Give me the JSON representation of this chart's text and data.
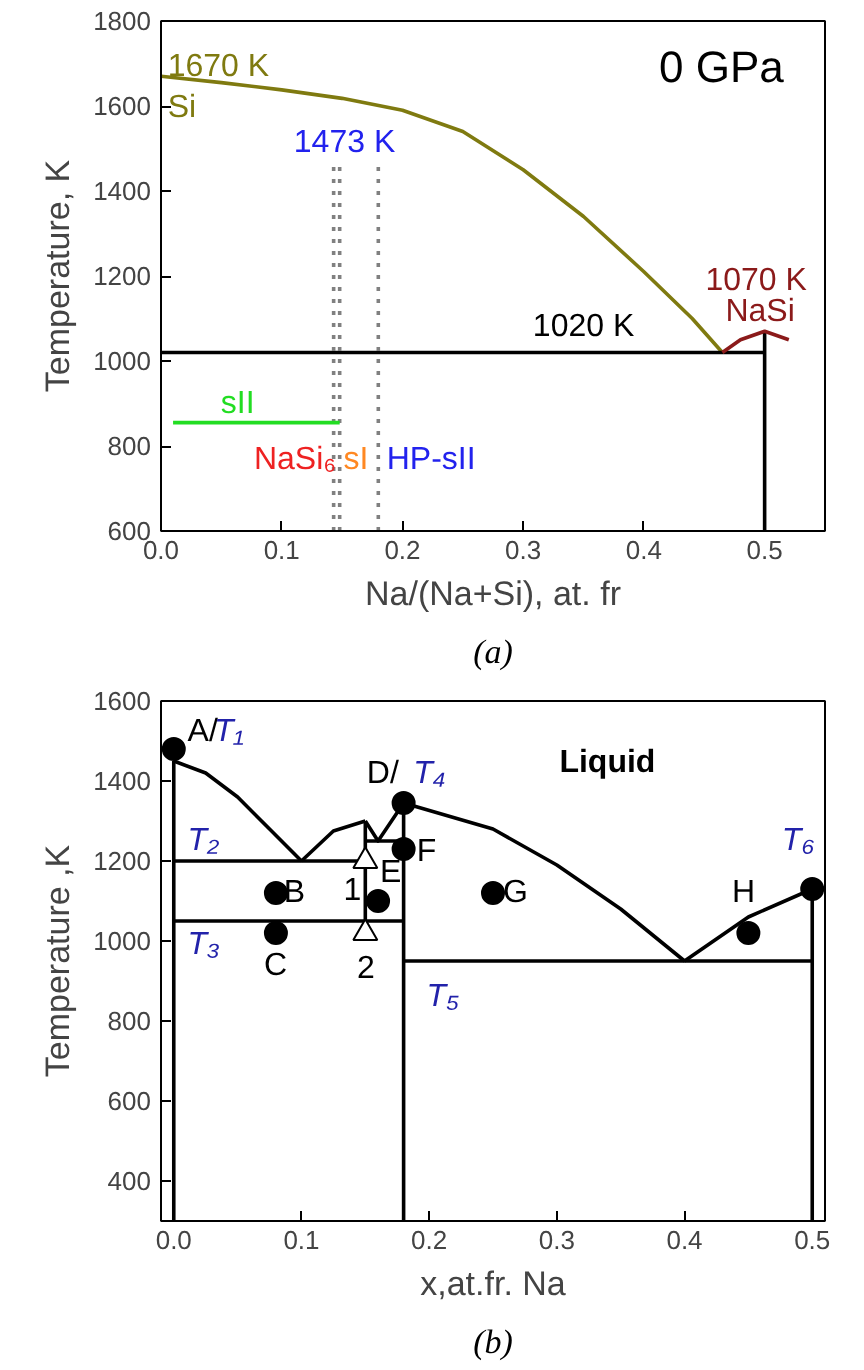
{
  "chart_data": [
    {
      "type": "line",
      "xlabel": "Na/(Na+Si), at. fr",
      "ylabel": "Temperature, K",
      "xlim": [
        0,
        0.55
      ],
      "ylim": [
        600,
        1800
      ],
      "xticks": [
        {
          "value": 0,
          "label": "0.0"
        },
        0.1,
        0.2,
        0.3,
        0.4,
        0.5
      ],
      "yticks": [
        600,
        800,
        1000,
        1200,
        1400,
        1600,
        1800
      ],
      "marker": "none",
      "series": [
        {
          "color": "#7f7a10",
          "x": [
            0,
            0.05,
            0.1,
            0.15,
            0.2,
            0.25,
            0.3,
            0.35,
            0.4,
            0.44,
            0.465
          ],
          "values": [
            1670,
            1655,
            1638,
            1618,
            1590,
            1540,
            1450,
            1340,
            1210,
            1100,
            1020
          ]
        },
        {
          "color": "#000000",
          "x": [
            0,
            0.5
          ],
          "values": [
            1020,
            1020
          ]
        },
        {
          "color": "#000000",
          "x": [
            0.5,
            0.5
          ],
          "values": [
            600,
            1070
          ]
        },
        {
          "color": "#8b1a1a",
          "x": [
            0.465,
            0.48,
            0.5,
            0.52
          ],
          "values": [
            1020,
            1050,
            1070,
            1050
          ]
        },
        {
          "color": "#808080",
          "line_style": "dotted",
          "x": [
            0.143,
            0.143
          ],
          "values": [
            600,
            1460
          ]
        },
        {
          "color": "#808080",
          "line_style": "dotted",
          "x": [
            0.148,
            0.148
          ],
          "values": [
            600,
            1460
          ]
        },
        {
          "color": "#808080",
          "line_style": "dotted",
          "x": [
            0.18,
            0.18
          ],
          "values": [
            600,
            1460
          ]
        },
        {
          "color": "#22dd22",
          "x": [
            0.01,
            0.148
          ],
          "values": [
            855,
            855
          ]
        }
      ],
      "annotations": [
        "0 GPa",
        "1670 K",
        "Si",
        "1473 K",
        "1020 K",
        "1070 K",
        "NaSi",
        "sII",
        "NaSi₆",
        "sI",
        "HP-sII",
        "(a)"
      ]
    },
    {
      "type": "line",
      "xlabel": "x,at.fr. Na",
      "ylabel": "Temperature ,K",
      "xlim": [
        -0.01,
        0.51
      ],
      "ylim": [
        300,
        1600
      ],
      "xticks": [
        {
          "value": 0,
          "label": "0.0"
        },
        0.1,
        0.2,
        0.3,
        0.4,
        0.5
      ],
      "yticks": [
        400,
        600,
        800,
        1000,
        1200,
        1400,
        1600
      ],
      "marker": "none",
      "series": [
        {
          "color": "#000000",
          "x": [
            0,
            0
          ],
          "values": [
            300,
            1450
          ]
        },
        {
          "color": "#000000",
          "x": [
            0,
            0.025,
            0.05,
            0.075,
            0.1
          ],
          "values": [
            1450,
            1420,
            1360,
            1280,
            1200
          ]
        },
        {
          "color": "#000000",
          "x": [
            0.1,
            0.125,
            0.15
          ],
          "values": [
            1200,
            1275,
            1300
          ]
        },
        {
          "color": "#000000",
          "x": [
            0.15,
            0.16,
            0.18
          ],
          "values": [
            1300,
            1250,
            1345
          ]
        },
        {
          "color": "#000000",
          "x": [
            0.18,
            0.25,
            0.3,
            0.35,
            0.4
          ],
          "values": [
            1345,
            1280,
            1190,
            1080,
            950
          ]
        },
        {
          "color": "#000000",
          "x": [
            0.4,
            0.45,
            0.5
          ],
          "values": [
            950,
            1060,
            1130
          ]
        },
        {
          "color": "#000000",
          "x": [
            0,
            0.15
          ],
          "values": [
            1200,
            1200
          ]
        },
        {
          "color": "#000000",
          "x": [
            0,
            0.18
          ],
          "values": [
            1050,
            1050
          ]
        },
        {
          "color": "#000000",
          "x": [
            0.15,
            0.18
          ],
          "values": [
            1250,
            1250
          ]
        },
        {
          "color": "#000000",
          "x": [
            0.18,
            0.5
          ],
          "values": [
            950,
            950
          ]
        },
        {
          "color": "#000000",
          "x": [
            0.15,
            0.15
          ],
          "values": [
            1050,
            1300
          ]
        },
        {
          "color": "#000000",
          "x": [
            0.18,
            0.18
          ],
          "values": [
            300,
            1345
          ]
        },
        {
          "color": "#000000",
          "x": [
            0.5,
            0.5
          ],
          "values": [
            300,
            1130
          ]
        },
        {
          "type": "scatter",
          "marker": "circle",
          "color": "#000000",
          "x": [
            0,
            0.08,
            0.08,
            0.16,
            0.18,
            0.18,
            0.25,
            0.45,
            0.5
          ],
          "values": [
            1480,
            1120,
            1020,
            1100,
            1345,
            1230,
            1120,
            1020,
            1130
          ]
        },
        {
          "type": "scatter",
          "marker": "triangle",
          "color": "#ffffff",
          "x": [
            0.15,
            0.15
          ],
          "values": [
            1200,
            1020
          ]
        }
      ],
      "annotations": [
        "A/",
        "T₁",
        "D/",
        "T₄",
        "Liquid",
        "T₂",
        "T₃",
        "T₅",
        "T₆",
        "B",
        "C",
        "1",
        "E",
        "2",
        "F",
        "G",
        "H",
        "(b)"
      ]
    }
  ]
}
